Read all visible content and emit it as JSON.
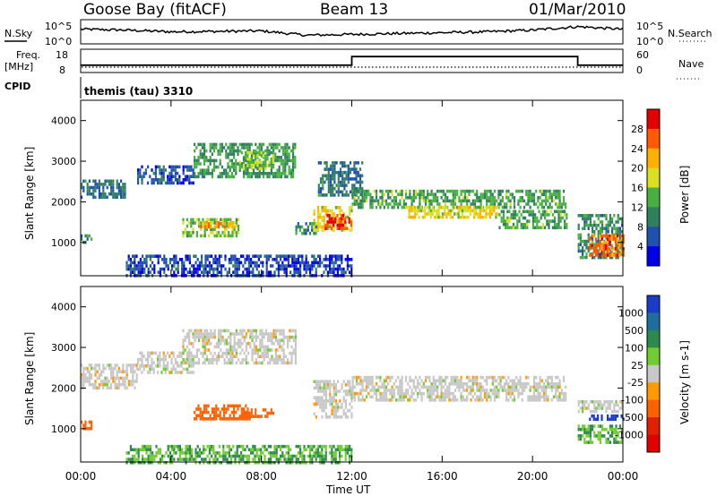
{
  "header": {
    "station": "Goose Bay (fitACF)",
    "beam": "Beam 13",
    "date": "01/Mar/2010"
  },
  "noise_panel": {
    "left_label": "N.Sky",
    "right_label": "N.Search",
    "left_ticks": [
      "10^5",
      "10^0"
    ],
    "right_ticks": [
      "10^5",
      "10^0"
    ]
  },
  "freq_panel": {
    "left_label_1": "Freq.",
    "left_label_2": "[MHz]",
    "right_label": "Nave",
    "left_ticks": [
      "18",
      "8"
    ],
    "right_ticks": [
      "60",
      "0"
    ]
  },
  "cpid_panel": {
    "label": "CPID",
    "value": "themis (tau) 3310"
  },
  "axes": {
    "ylabel": "Slant Range [km]",
    "xlabel": "Time UT",
    "y_ticks": [
      "4000",
      "3000",
      "2000",
      "1000"
    ],
    "x_ticks": [
      "00:00",
      "04:00",
      "08:00",
      "12:00",
      "16:00",
      "20:00",
      "00:00"
    ]
  },
  "power_scale": {
    "title": "Power [dB]",
    "labels": [
      "28",
      "24",
      "20",
      "16",
      "12",
      "8",
      "4"
    ],
    "colors": [
      "#e40000",
      "#ff5a00",
      "#ffb000",
      "#d8e020",
      "#48b040",
      "#308060",
      "#2050b0",
      "#0000e8"
    ]
  },
  "velocity_scale": {
    "title": "Velocity [m s-1]",
    "labels": [
      "1000",
      "500",
      "100",
      "25",
      "-25",
      "-100",
      "-500",
      "-1000"
    ],
    "colors": [
      "#1a3cc8",
      "#1e6ea0",
      "#2c8a4c",
      "#70cc30",
      "#c8c8c8",
      "#ff9a00",
      "#ff6000",
      "#e02000",
      "#e00000"
    ]
  },
  "chart_data": [
    {
      "type": "line",
      "title": "N.Sky",
      "x_units": "hours UT",
      "x": [
        0,
        2,
        4,
        6,
        8,
        10,
        12,
        14,
        16,
        18,
        20,
        22,
        24
      ],
      "y_log10": [
        3.2,
        3.0,
        2.6,
        2.7,
        2.8,
        1.8,
        2.0,
        2.2,
        2.4,
        2.6,
        3.0,
        3.8,
        3.2
      ],
      "ylim_log10": [
        0,
        5
      ]
    },
    {
      "type": "line",
      "title": "Freq.",
      "x": [
        0,
        12,
        12,
        22,
        22,
        24
      ],
      "y": [
        11,
        11,
        15,
        15,
        11,
        11
      ],
      "ylim": [
        8,
        18
      ]
    },
    {
      "type": "heatmap",
      "title": "Power [dB]",
      "ylabel": "Slant Range [km]",
      "xlabel": "Time UT",
      "xlim": [
        0,
        24
      ],
      "ylim": [
        180,
        4500
      ],
      "zlim": [
        0,
        30
      ],
      "bands": [
        {
          "t0": 0.0,
          "t1": 2.0,
          "r0": 2150,
          "r1": 2550,
          "power": 8
        },
        {
          "t0": 0.0,
          "t1": 0.5,
          "r0": 1000,
          "r1": 1200,
          "power": 9
        },
        {
          "t0": 2.5,
          "t1": 5.0,
          "r0": 2500,
          "r1": 2900,
          "power": 6
        },
        {
          "t0": 4.5,
          "t1": 7.0,
          "r0": 1200,
          "r1": 1600,
          "power": 14
        },
        {
          "t0": 5.2,
          "t1": 6.8,
          "r0": 1350,
          "r1": 1500,
          "power": 22
        },
        {
          "t0": 5.0,
          "t1": 9.5,
          "r0": 2600,
          "r1": 3450,
          "power": 11
        },
        {
          "t0": 7.0,
          "t1": 8.5,
          "r0": 2800,
          "r1": 3250,
          "power": 14
        },
        {
          "t0": 9.5,
          "t1": 10.5,
          "r0": 1200,
          "r1": 1500,
          "power": 9
        },
        {
          "t0": 10.3,
          "t1": 12.0,
          "r0": 1300,
          "r1": 1900,
          "power": 17
        },
        {
          "t0": 10.8,
          "t1": 12.0,
          "r0": 1350,
          "r1": 1700,
          "power": 26
        },
        {
          "t0": 10.5,
          "t1": 12.5,
          "r0": 2200,
          "r1": 3000,
          "power": 8
        },
        {
          "t0": 12.0,
          "t1": 21.5,
          "r0": 1900,
          "r1": 2300,
          "power": 12
        },
        {
          "t0": 14.5,
          "t1": 18.5,
          "r0": 1650,
          "r1": 1900,
          "power": 18
        },
        {
          "t0": 18.5,
          "t1": 21.5,
          "r0": 1400,
          "r1": 1800,
          "power": 12
        },
        {
          "t0": 22.0,
          "t1": 24.0,
          "r0": 600,
          "r1": 1700,
          "power": 10
        },
        {
          "t0": 22.5,
          "t1": 24.0,
          "r0": 700,
          "r1": 1200,
          "power": 24
        },
        {
          "t0": 2.0,
          "t1": 12.0,
          "r0": 180,
          "r1": 700,
          "power": 5
        }
      ]
    },
    {
      "type": "heatmap",
      "title": "Velocity [m s-1]",
      "ylabel": "Slant Range [km]",
      "xlabel": "Time UT",
      "xlim": [
        0,
        24
      ],
      "ylim": [
        180,
        4500
      ],
      "zlim": [
        -1000,
        1000
      ],
      "bands": [
        {
          "t0": 0.0,
          "t1": 2.5,
          "r0": 2000,
          "r1": 2600,
          "velocity": 0
        },
        {
          "t0": 0.0,
          "t1": 0.5,
          "r0": 1000,
          "r1": 1200,
          "velocity": -200
        },
        {
          "t0": 2.5,
          "t1": 5.0,
          "r0": 2400,
          "r1": 2900,
          "velocity": 0
        },
        {
          "t0": 4.5,
          "t1": 9.5,
          "r0": 2600,
          "r1": 3450,
          "velocity": 0
        },
        {
          "t0": 5.0,
          "t1": 7.5,
          "r0": 1250,
          "r1": 1600,
          "velocity": -300
        },
        {
          "t0": 7.0,
          "t1": 8.5,
          "r0": 1300,
          "r1": 1500,
          "velocity": -200
        },
        {
          "t0": 10.3,
          "t1": 12.0,
          "r0": 1300,
          "r1": 2200,
          "velocity": 0
        },
        {
          "t0": 12.0,
          "t1": 21.5,
          "r0": 1700,
          "r1": 2300,
          "velocity": 0
        },
        {
          "t0": 22.0,
          "t1": 24.0,
          "r0": 1400,
          "r1": 1700,
          "velocity": 0
        },
        {
          "t0": 22.5,
          "t1": 24.0,
          "r0": 1200,
          "r1": 1350,
          "velocity": 800
        },
        {
          "t0": 22.0,
          "t1": 24.0,
          "r0": 700,
          "r1": 1100,
          "velocity": 60
        },
        {
          "t0": 2.0,
          "t1": 12.0,
          "r0": 180,
          "r1": 600,
          "velocity": 60
        }
      ]
    }
  ]
}
